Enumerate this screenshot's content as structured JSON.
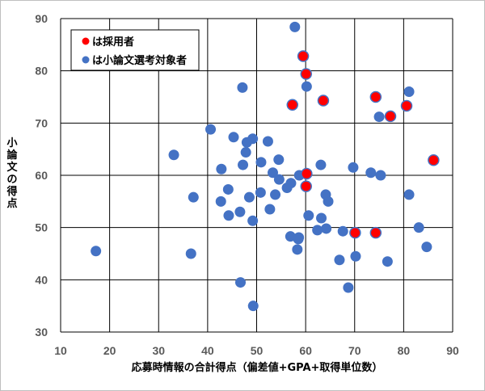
{
  "chart_data": {
    "type": "scatter",
    "xlabel": "応募時情報の合計得点（偏差値+GPA+取得単位数）",
    "ylabel": "小論文の得点",
    "xlim": [
      10,
      90
    ],
    "ylim": [
      30,
      90
    ],
    "xticks": [
      "10",
      "20",
      "30",
      "40",
      "50",
      "60",
      "70",
      "80",
      "90"
    ],
    "yticks": [
      "30",
      "40",
      "50",
      "60",
      "70",
      "80",
      "90"
    ],
    "grid": true,
    "legend_position": "top-left",
    "series": [
      {
        "name": "は小論文選考対象者",
        "color": "#4472C4",
        "points": [
          [
            57.8,
            88.4
          ],
          [
            60.2,
            77.0
          ],
          [
            47.1,
            76.8
          ],
          [
            81.1,
            76.0
          ],
          [
            75.0,
            71.2
          ],
          [
            40.6,
            68.8
          ],
          [
            45.3,
            67.3
          ],
          [
            49.2,
            67.0
          ],
          [
            48.0,
            66.3
          ],
          [
            52.3,
            66.5
          ],
          [
            47.8,
            64.4
          ],
          [
            33.1,
            63.9
          ],
          [
            54.5,
            63.0
          ],
          [
            50.9,
            62.5
          ],
          [
            47.2,
            62.0
          ],
          [
            63.1,
            62.0
          ],
          [
            69.7,
            61.5
          ],
          [
            42.8,
            61.2
          ],
          [
            53.3,
            60.5
          ],
          [
            58.7,
            60.0
          ],
          [
            73.3,
            60.5
          ],
          [
            75.3,
            60.0
          ],
          [
            54.6,
            59.2
          ],
          [
            57.0,
            58.5
          ],
          [
            56.2,
            57.6
          ],
          [
            44.2,
            57.3
          ],
          [
            50.8,
            56.7
          ],
          [
            53.8,
            56.3
          ],
          [
            64.1,
            56.3
          ],
          [
            81.1,
            56.3
          ],
          [
            37.1,
            55.8
          ],
          [
            48.5,
            55.8
          ],
          [
            42.7,
            55.0
          ],
          [
            64.6,
            55.0
          ],
          [
            52.7,
            53.5
          ],
          [
            46.6,
            53.0
          ],
          [
            44.3,
            52.3
          ],
          [
            60.6,
            52.3
          ],
          [
            63.2,
            51.8
          ],
          [
            49.2,
            51.3
          ],
          [
            83.1,
            50.0
          ],
          [
            64.2,
            49.8
          ],
          [
            62.4,
            49.5
          ],
          [
            67.6,
            49.3
          ],
          [
            56.9,
            48.3
          ],
          [
            58.6,
            48.1
          ],
          [
            58.5,
            47.8
          ],
          [
            84.7,
            46.3
          ],
          [
            58.3,
            45.8
          ],
          [
            17.2,
            45.5
          ],
          [
            36.6,
            45.0
          ],
          [
            70.2,
            44.5
          ],
          [
            66.9,
            43.8
          ],
          [
            76.7,
            43.5
          ],
          [
            46.7,
            39.5
          ],
          [
            68.7,
            38.5
          ],
          [
            49.3,
            35.0
          ]
        ]
      },
      {
        "name": "は採用者",
        "color": "#FF0000",
        "points": [
          [
            59.5,
            82.8
          ],
          [
            60.1,
            79.4
          ],
          [
            57.3,
            73.5
          ],
          [
            63.6,
            74.3
          ],
          [
            74.3,
            75.0
          ],
          [
            77.3,
            71.3
          ],
          [
            80.6,
            73.3
          ],
          [
            86.1,
            62.9
          ],
          [
            60.2,
            60.3
          ],
          [
            60.1,
            57.9
          ],
          [
            70.1,
            49.0
          ],
          [
            74.3,
            49.0
          ]
        ]
      }
    ]
  },
  "legend": {
    "items": [
      {
        "label": "は採用者",
        "color": "#FF0000"
      },
      {
        "label": "は小論文選考対象者",
        "color": "#4472C4"
      }
    ]
  }
}
